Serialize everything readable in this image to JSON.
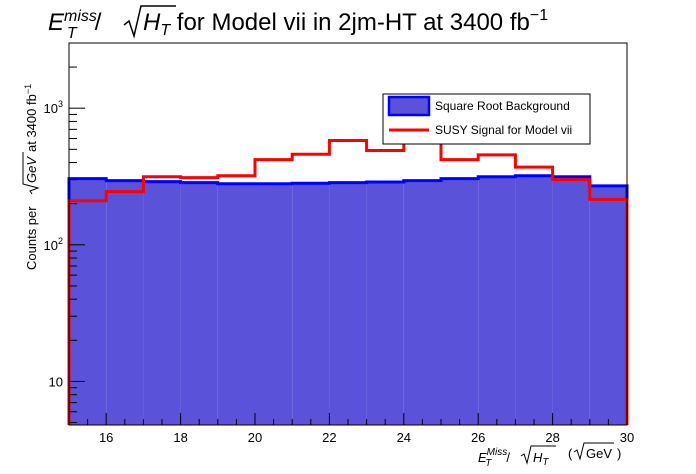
{
  "chart_data": {
    "type": "histogram",
    "title": {
      "main": "E",
      "sub": "T",
      "sup": "miss",
      "slash": "/",
      "sqrt_var": "H",
      "sqrt_sub": "T",
      "rest": " for Model vii in 2jm-HT at 3400 fb",
      "rest_sup": "−1"
    },
    "xlabel": {
      "main": "E",
      "sub": "T",
      "sup": "Miss",
      "slash": "/",
      "sqrt_var": "H",
      "sqrt_sub": "T",
      "unit_open": "(",
      "unit_sqrt": "GeV",
      "unit_close": ")"
    },
    "ylabel": {
      "prefix": "Counts per ",
      "sqrt_unit": "GeV",
      "suffix": " at 3400 fb",
      "suffix_sup": "−1"
    },
    "xlim": [
      15,
      30
    ],
    "ylim": [
      4.8,
      3000
    ],
    "yscale": "log",
    "bin_edges": [
      15,
      16,
      17,
      18,
      19,
      20,
      21,
      22,
      23,
      24,
      25,
      26,
      27,
      28,
      29,
      30
    ],
    "series": [
      {
        "name": "Square Root Background",
        "style": "filled",
        "fill": "#5a52d8",
        "line": "#0000ff",
        "values": [
          305,
          295,
          290,
          285,
          280,
          280,
          282,
          285,
          288,
          295,
          305,
          315,
          320,
          315,
          270
        ]
      },
      {
        "name": "SUSY Signal for Model vii",
        "style": "line",
        "line": "#ff0000",
        "values": [
          210,
          245,
          315,
          310,
          320,
          420,
          460,
          580,
          490,
          570,
          420,
          455,
          370,
          300,
          215
        ]
      }
    ],
    "x_ticks": [
      {
        "value": 16,
        "label": "16"
      },
      {
        "value": 18,
        "label": "18"
      },
      {
        "value": 20,
        "label": "20"
      },
      {
        "value": 22,
        "label": "22"
      },
      {
        "value": 24,
        "label": "24"
      },
      {
        "value": 26,
        "label": "26"
      },
      {
        "value": 28,
        "label": "28"
      },
      {
        "value": 30,
        "label": "30"
      }
    ],
    "y_ticks": [
      {
        "value": 10,
        "label": "10",
        "sup": ""
      },
      {
        "value": 100,
        "label": "10",
        "sup": "2"
      },
      {
        "value": 1000,
        "label": "10",
        "sup": "3"
      }
    ],
    "legend": {
      "position": "top-right",
      "entries": [
        "Square Root Background",
        "SUSY Signal for Model vii"
      ]
    }
  }
}
